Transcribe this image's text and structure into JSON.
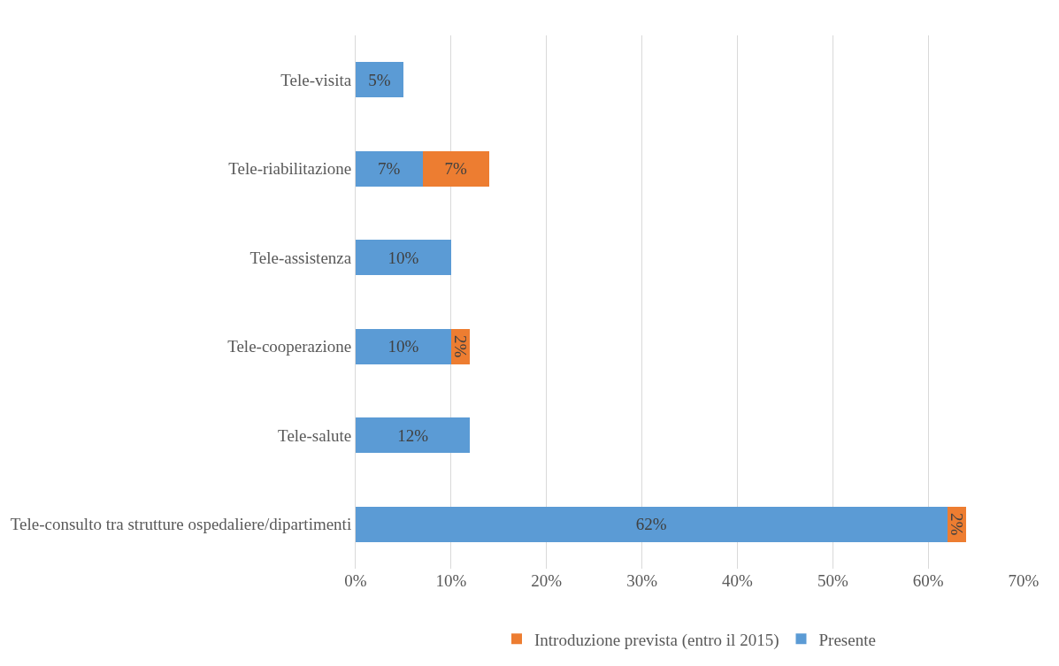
{
  "chart_data": {
    "type": "bar",
    "orientation": "horizontal",
    "stacked": true,
    "categories": [
      "Tele-visita",
      "Tele-riabilitazione",
      "Tele-assistenza",
      "Tele-cooperazione",
      "Tele-salute",
      "Tele-consulto tra strutture ospedaliere/dipartimenti"
    ],
    "series": [
      {
        "name": "Presente",
        "color": "#5b9bd5",
        "values": [
          5,
          7,
          10,
          10,
          12,
          62
        ],
        "value_labels": [
          "5%",
          "7%",
          "10%",
          "10%",
          "12%",
          "62%"
        ]
      },
      {
        "name": "Introduzione prevista (entro il 2015)",
        "color": "#ed7d31",
        "values": [
          null,
          7,
          null,
          2,
          null,
          2
        ],
        "value_labels": [
          null,
          "7%",
          null,
          "2%",
          null,
          "2%"
        ]
      }
    ],
    "xlim": [
      0,
      70
    ],
    "xticks": [
      {
        "value": 0,
        "label": "0%"
      },
      {
        "value": 10,
        "label": "10%"
      },
      {
        "value": 20,
        "label": "20%"
      },
      {
        "value": 30,
        "label": "30%"
      },
      {
        "value": 40,
        "label": "40%"
      },
      {
        "value": 50,
        "label": "50%"
      },
      {
        "value": 60,
        "label": "60%"
      },
      {
        "value": 70,
        "label": "70%"
      }
    ],
    "grid": "x",
    "legend": "bottom"
  }
}
